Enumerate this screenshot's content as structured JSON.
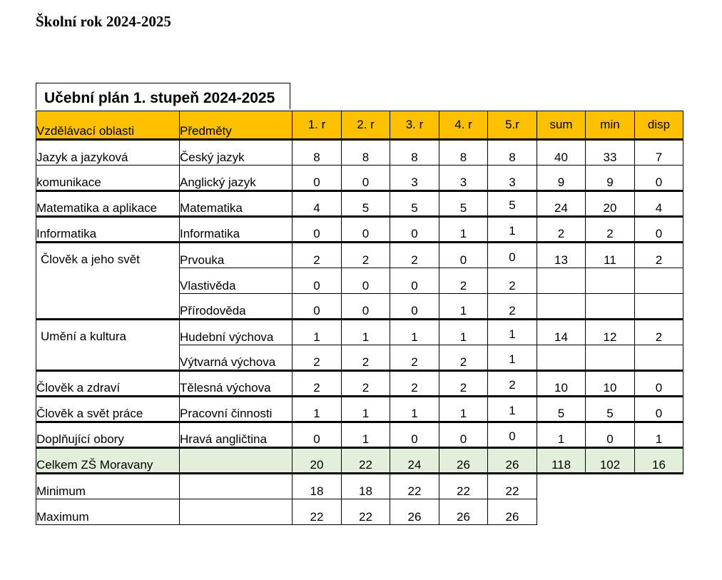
{
  "document": {
    "title": "Školní rok 2024-2025",
    "table_title": "Učební plán 1. stupeň 2024-2025"
  },
  "table": {
    "headers": [
      "Vzdělávací oblasti",
      "Předměty",
      "1. r",
      "2. r",
      "3. r",
      "4. r",
      "5.r",
      "sum",
      "min",
      "disp"
    ],
    "groups": [
      {
        "area": "Jazyk a jazyková",
        "area_line2": "komunikace",
        "rows": [
          {
            "subject": "Český jazyk",
            "values": [
              "8",
              "8",
              "8",
              "8",
              "8"
            ],
            "sum": "40",
            "min": "33",
            "disp": "7"
          },
          {
            "subject": "Anglický jazyk",
            "values": [
              "0",
              "0",
              "3",
              "3",
              "3"
            ],
            "sum": "9",
            "min": "9",
            "disp": "0"
          }
        ]
      },
      {
        "area": "Matematika a aplikace",
        "rows": [
          {
            "subject": "Matematika",
            "values": [
              "4",
              "5",
              "5",
              "5",
              "5"
            ],
            "sum": "24",
            "min": "20",
            "disp": "4"
          }
        ]
      },
      {
        "area": "Informatika",
        "rows": [
          {
            "subject": "Informatika",
            "values": [
              "0",
              "0",
              "0",
              "1",
              "1"
            ],
            "sum": "2",
            "min": "2",
            "disp": "0"
          }
        ]
      },
      {
        "area": "Člověk a jeho svět",
        "rows": [
          {
            "subject": "Prvouka",
            "values": [
              "2",
              "2",
              "2",
              "0",
              "0"
            ],
            "sum": "13",
            "min": "11",
            "disp": "2"
          },
          {
            "subject": "Vlastivěda",
            "values": [
              "0",
              "0",
              "0",
              "2",
              "2"
            ]
          },
          {
            "subject": "Přírodověda",
            "values": [
              "0",
              "0",
              "0",
              "1",
              "2"
            ]
          }
        ]
      },
      {
        "area": "Umění a kultura",
        "rows": [
          {
            "subject": "Hudební výchova",
            "values": [
              "1",
              "1",
              "1",
              "1",
              "1"
            ],
            "sum": "14",
            "min": "12",
            "disp": "2"
          },
          {
            "subject": "Výtvarná výchova",
            "values": [
              "2",
              "2",
              "2",
              "2",
              "1"
            ]
          }
        ]
      },
      {
        "area": "Člověk a zdraví",
        "rows": [
          {
            "subject": "Tělesná výchova",
            "values": [
              "2",
              "2",
              "2",
              "2",
              "2"
            ],
            "sum": "10",
            "min": "10",
            "disp": "0"
          }
        ]
      },
      {
        "area": "Člověk a svět práce",
        "rows": [
          {
            "subject": "Pracovní činnosti",
            "values": [
              "1",
              "1",
              "1",
              "1",
              "1"
            ],
            "sum": "5",
            "min": "5",
            "disp": "0"
          }
        ]
      },
      {
        "area": "Doplňující obory",
        "rows": [
          {
            "subject": "Hravá angličtina",
            "values": [
              "0",
              "1",
              "0",
              "0",
              "0"
            ],
            "sum": "1",
            "min": "0",
            "disp": "1"
          }
        ]
      }
    ],
    "total": {
      "label": "Celkem ZŠ Moravany",
      "values": [
        "20",
        "22",
        "24",
        "26",
        "26"
      ],
      "sum": "118",
      "min": "102",
      "disp": "16"
    },
    "minimum": {
      "label": "Minimum",
      "values": [
        "18",
        "18",
        "22",
        "22",
        "22"
      ]
    },
    "maximum": {
      "label": "Maximum",
      "values": [
        "22",
        "22",
        "26",
        "26",
        "26"
      ]
    },
    "colors": {
      "header": "#ffc000",
      "total_row": "#e2efda"
    }
  }
}
